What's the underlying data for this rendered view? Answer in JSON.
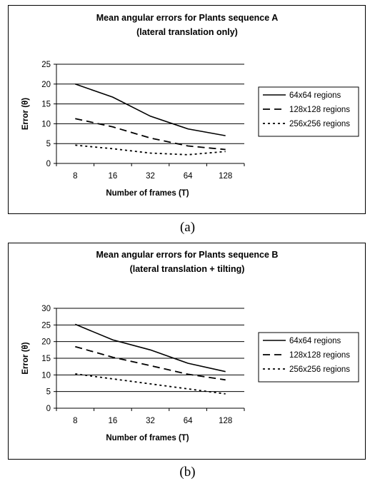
{
  "figures": [
    {
      "caption": "(a)"
    },
    {
      "caption": "(b)"
    }
  ],
  "chart_data": [
    {
      "type": "line",
      "title": "Mean angular errors for Plants sequence A",
      "subtitle": "(lateral translation only)",
      "xlabel": "Number of frames (T)",
      "ylabel": "Error (θ)",
      "categories": [
        "8",
        "16",
        "32",
        "64",
        "128"
      ],
      "ylim": [
        0,
        25
      ],
      "yticks": [
        0,
        5,
        10,
        15,
        20,
        25
      ],
      "grid": true,
      "legend": "right",
      "series": [
        {
          "name": "64x64 regions",
          "style": "solid",
          "values": [
            20,
            16.7,
            11.9,
            8.7,
            7.0
          ]
        },
        {
          "name": "128x128 regions",
          "style": "dashed",
          "values": [
            11.3,
            9.2,
            6.4,
            4.4,
            3.5
          ]
        },
        {
          "name": "256x256 regions",
          "style": "dotted",
          "values": [
            4.6,
            3.7,
            2.6,
            2.2,
            3.0
          ]
        }
      ]
    },
    {
      "type": "line",
      "title": "Mean angular errors for Plants sequence B",
      "subtitle": "(lateral translation + tilting)",
      "xlabel": "Number of frames (T)",
      "ylabel": "Error (θ)",
      "categories": [
        "8",
        "16",
        "32",
        "64",
        "128"
      ],
      "ylim": [
        0,
        30
      ],
      "yticks": [
        0,
        5,
        10,
        15,
        20,
        25,
        30
      ],
      "grid": true,
      "legend": "right",
      "series": [
        {
          "name": "64x64 regions",
          "style": "solid",
          "values": [
            25.2,
            20.5,
            17.5,
            13.5,
            11.0
          ]
        },
        {
          "name": "128x128 regions",
          "style": "dashed",
          "values": [
            18.5,
            15.3,
            12.8,
            10.2,
            8.5
          ]
        },
        {
          "name": "256x256 regions",
          "style": "dotted",
          "values": [
            10.3,
            8.8,
            7.3,
            5.8,
            4.3
          ]
        }
      ]
    }
  ]
}
